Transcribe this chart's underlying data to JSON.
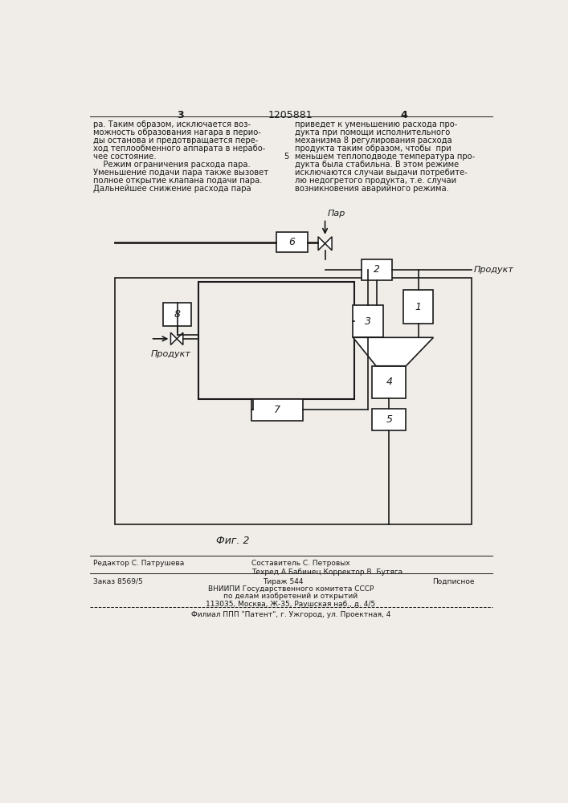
{
  "bg_color": "#f0ede8",
  "line_color": "#1a1a1a",
  "text_color": "#1a1a1a",
  "title_top_left": "3",
  "title_top_center": "1205881",
  "title_top_right": "4",
  "text_left_col": [
    "ра. Таким образом, исключается воз-",
    "можность образования нагара в перио-",
    "ды останова и предотвращается пере-",
    "ход теплообменного аппарата в нерабо-",
    "чее состояние.",
    "    Режим ограничения расхода пара.",
    "Уменьшение подачи пара также вызовет",
    "полное открытие клапана подачи пара.",
    "Дальнейшее снижение расхода пара"
  ],
  "text_right_col": [
    "приведет к уменьшению расхода про-",
    "дукта при помощи исполнительного",
    "механизма 8 регулирования расхода",
    "продукта таким образом, чтобы  при",
    "меньшем теплоподводе температура про-",
    "дукта была стабильна. В этом режиме",
    "исключаются случаи выдачи потребите-",
    "лю недогретого продукта, т.е. случаи",
    "возникновения аварийного режима."
  ],
  "fig_label": "Фиг. 2"
}
